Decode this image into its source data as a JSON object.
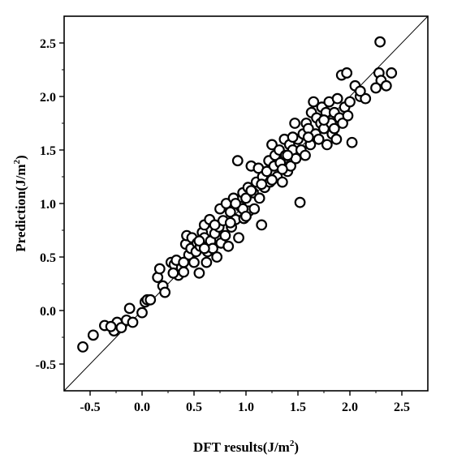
{
  "chart_data": {
    "type": "scatter",
    "title": "",
    "xlabel": {
      "main": "DFT results(J/m",
      "sup": "2",
      "close": ")"
    },
    "ylabel": {
      "main": "Prediction(J/m",
      "sup": "2",
      "close": ")"
    },
    "xlim": [
      -0.75,
      2.75
    ],
    "ylim": [
      -0.75,
      2.75
    ],
    "xticks": [
      "-0.5",
      "0.0",
      "0.5",
      "1.0",
      "1.5",
      "2.0",
      "2.5"
    ],
    "yticks": [
      "-0.5",
      "0.0",
      "0.5",
      "1.0",
      "1.5",
      "2.0",
      "2.5"
    ],
    "reference_line": "y = x",
    "marker": "open-circle",
    "grid": false,
    "legend": "none",
    "series": [
      {
        "points": [
          [
            -0.57,
            -0.34
          ],
          [
            -0.47,
            -0.23
          ],
          [
            -0.36,
            -0.14
          ],
          [
            -0.27,
            -0.19
          ],
          [
            -0.24,
            -0.11
          ],
          [
            -0.2,
            -0.16
          ],
          [
            -0.15,
            -0.09
          ],
          [
            -0.12,
            0.02
          ],
          [
            -0.09,
            -0.11
          ],
          [
            0.0,
            -0.02
          ],
          [
            0.03,
            0.08
          ],
          [
            0.05,
            0.1
          ],
          [
            0.08,
            0.1
          ],
          [
            0.15,
            0.31
          ],
          [
            0.17,
            0.39
          ],
          [
            0.2,
            0.23
          ],
          [
            0.22,
            0.17
          ],
          [
            0.28,
            0.45
          ],
          [
            0.31,
            0.43
          ],
          [
            0.33,
            0.47
          ],
          [
            0.35,
            0.33
          ],
          [
            0.38,
            0.4
          ],
          [
            0.4,
            0.36
          ],
          [
            0.42,
            0.62
          ],
          [
            0.43,
            0.7
          ],
          [
            0.45,
            0.52
          ],
          [
            0.47,
            0.58
          ],
          [
            0.48,
            0.68
          ],
          [
            0.5,
            0.45
          ],
          [
            0.52,
            0.55
          ],
          [
            0.53,
            0.63
          ],
          [
            0.55,
            0.35
          ],
          [
            0.56,
            0.6
          ],
          [
            0.58,
            0.73
          ],
          [
            0.6,
            0.8
          ],
          [
            0.6,
            0.68
          ],
          [
            0.62,
            0.45
          ],
          [
            0.63,
            0.55
          ],
          [
            0.65,
            0.85
          ],
          [
            0.66,
            0.65
          ],
          [
            0.68,
            0.58
          ],
          [
            0.7,
            0.72
          ],
          [
            0.72,
            0.5
          ],
          [
            0.74,
            0.78
          ],
          [
            0.75,
            0.95
          ],
          [
            0.76,
            0.63
          ],
          [
            0.78,
            0.84
          ],
          [
            0.8,
            0.7
          ],
          [
            0.81,
            1.0
          ],
          [
            0.83,
            0.6
          ],
          [
            0.85,
            0.92
          ],
          [
            0.86,
            0.78
          ],
          [
            0.88,
            1.05
          ],
          [
            0.9,
            0.85
          ],
          [
            0.92,
            1.4
          ],
          [
            0.93,
            0.68
          ],
          [
            0.95,
            0.97
          ],
          [
            0.97,
            1.1
          ],
          [
            0.98,
            0.86
          ],
          [
            1.0,
            1.05
          ],
          [
            1.02,
            1.15
          ],
          [
            1.03,
            0.93
          ],
          [
            1.05,
            1.35
          ],
          [
            1.07,
            1.1
          ],
          [
            1.08,
            0.95
          ],
          [
            1.1,
            1.2
          ],
          [
            1.12,
            1.33
          ],
          [
            1.13,
            1.05
          ],
          [
            1.15,
            0.8
          ],
          [
            1.16,
            1.25
          ],
          [
            1.18,
            1.15
          ],
          [
            1.2,
            1.3
          ],
          [
            1.22,
            1.4
          ],
          [
            1.23,
            1.2
          ],
          [
            1.25,
            1.55
          ],
          [
            1.27,
            1.35
          ],
          [
            1.28,
            1.45
          ],
          [
            1.3,
            1.25
          ],
          [
            1.32,
            1.5
          ],
          [
            1.33,
            1.38
          ],
          [
            1.35,
            1.2
          ],
          [
            1.37,
            1.6
          ],
          [
            1.38,
            1.45
          ],
          [
            1.4,
            1.3
          ],
          [
            1.42,
            1.55
          ],
          [
            1.43,
            1.35
          ],
          [
            1.45,
            1.5
          ],
          [
            1.47,
            1.75
          ],
          [
            1.48,
            1.42
          ],
          [
            1.5,
            1.6
          ],
          [
            1.52,
            1.01
          ],
          [
            1.53,
            1.5
          ],
          [
            1.55,
            1.65
          ],
          [
            1.57,
            1.45
          ],
          [
            1.58,
            1.75
          ],
          [
            1.6,
            1.7
          ],
          [
            1.62,
            1.55
          ],
          [
            1.63,
            1.85
          ],
          [
            1.65,
            1.95
          ],
          [
            1.67,
            1.65
          ],
          [
            1.68,
            1.8
          ],
          [
            1.7,
            1.6
          ],
          [
            1.72,
            1.75
          ],
          [
            1.73,
            1.9
          ],
          [
            1.75,
            1.7
          ],
          [
            1.77,
            1.85
          ],
          [
            1.78,
            1.55
          ],
          [
            1.8,
            1.95
          ],
          [
            1.82,
            1.75
          ],
          [
            1.83,
            1.65
          ],
          [
            1.85,
            1.85
          ],
          [
            1.87,
            1.6
          ],
          [
            1.88,
            1.98
          ],
          [
            1.9,
            1.8
          ],
          [
            1.92,
            2.2
          ],
          [
            1.93,
            1.75
          ],
          [
            1.95,
            1.9
          ],
          [
            1.97,
            2.22
          ],
          [
            1.98,
            1.82
          ],
          [
            2.0,
            1.95
          ],
          [
            2.02,
            1.57
          ],
          [
            2.05,
            2.1
          ],
          [
            2.1,
            2.0
          ],
          [
            2.15,
            1.98
          ],
          [
            2.28,
            2.22
          ],
          [
            2.29,
            2.51
          ],
          [
            2.3,
            2.15
          ],
          [
            2.35,
            2.1
          ],
          [
            2.4,
            2.22
          ],
          [
            2.25,
            2.08
          ],
          [
            0.97,
            0.95
          ],
          [
            1.25,
            1.22
          ],
          [
            1.05,
            1.12
          ],
          [
            0.7,
            0.8
          ],
          [
            0.55,
            0.65
          ],
          [
            1.4,
            1.45
          ],
          [
            1.6,
            1.62
          ],
          [
            1.15,
            1.18
          ],
          [
            0.85,
            0.82
          ],
          [
            0.6,
            0.58
          ],
          [
            0.4,
            0.45
          ],
          [
            1.35,
            1.32
          ],
          [
            1.75,
            1.78
          ],
          [
            0.9,
            1.0
          ],
          [
            1.0,
            0.88
          ],
          [
            1.85,
            1.7
          ],
          [
            2.1,
            2.05
          ],
          [
            1.45,
            1.62
          ],
          [
            0.3,
            0.35
          ],
          [
            -0.3,
            -0.15
          ]
        ]
      }
    ]
  }
}
